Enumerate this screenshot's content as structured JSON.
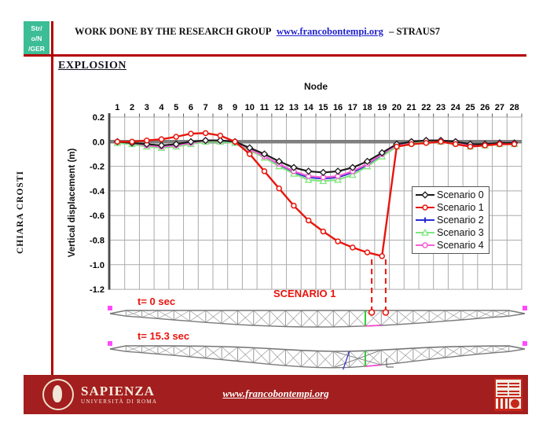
{
  "header": {
    "logo_lines": [
      "Str/",
      "o/N",
      "/GER"
    ],
    "title": "WORK DONE BY THE RESEARCH GROUP",
    "link": "www.francobontempi.org",
    "suffix": "– STRAUS7"
  },
  "sidebar": {
    "author": "CHIARA CROSTI"
  },
  "section_title": "EXPLOSION",
  "chart_data": {
    "type": "line",
    "title": "Node",
    "xlabel": "Node",
    "ylabel": "Vertical displacement (m)",
    "x": [
      1,
      2,
      3,
      4,
      5,
      6,
      7,
      8,
      9,
      10,
      11,
      12,
      13,
      14,
      15,
      16,
      17,
      18,
      19,
      20,
      21,
      22,
      23,
      24,
      25,
      26,
      27,
      28
    ],
    "ylim": [
      -1.2,
      0.2
    ],
    "ytick_labels": [
      "0.2",
      "0.0",
      "-0.2",
      "-0.4",
      "-0.6",
      "-0.8",
      "-1.0",
      "-1.2"
    ],
    "grid": true,
    "legend_position": "right-middle",
    "series": [
      {
        "name": "Scenario 0",
        "color": "#1A1A1A",
        "marker": "diamond",
        "values": [
          0.0,
          -0.01,
          -0.02,
          -0.03,
          -0.02,
          0.0,
          0.01,
          0.01,
          0.0,
          -0.05,
          -0.1,
          -0.16,
          -0.21,
          -0.24,
          -0.25,
          -0.24,
          -0.21,
          -0.16,
          -0.09,
          -0.02,
          0.0,
          0.01,
          0.01,
          0.0,
          -0.02,
          -0.02,
          -0.01,
          -0.01
        ]
      },
      {
        "name": "Scenario 1",
        "color": "#E8150D",
        "marker": "circle",
        "values": [
          0.0,
          0.0,
          0.01,
          0.02,
          0.04,
          0.065,
          0.07,
          0.05,
          0.0,
          -0.1,
          -0.24,
          -0.38,
          -0.52,
          -0.64,
          -0.73,
          -0.81,
          -0.86,
          -0.9,
          -0.93,
          -0.04,
          -0.02,
          -0.01,
          0.0,
          -0.02,
          -0.04,
          -0.03,
          -0.02,
          -0.02
        ]
      },
      {
        "name": "Scenario 2",
        "color": "#2B2BD5",
        "marker": "plus",
        "values": [
          0.0,
          -0.01,
          -0.03,
          -0.04,
          -0.03,
          -0.01,
          0.01,
          0.01,
          0.0,
          -0.06,
          -0.12,
          -0.19,
          -0.25,
          -0.29,
          -0.3,
          -0.29,
          -0.25,
          -0.19,
          -0.11,
          -0.03,
          0.0,
          0.01,
          0.01,
          0.0,
          -0.03,
          -0.02,
          -0.01,
          -0.01
        ]
      },
      {
        "name": "Scenario 3",
        "color": "#7FE57F",
        "marker": "triangle",
        "values": [
          -0.01,
          -0.02,
          -0.04,
          -0.05,
          -0.04,
          -0.02,
          0.0,
          0.0,
          -0.01,
          -0.07,
          -0.13,
          -0.2,
          -0.26,
          -0.31,
          -0.32,
          -0.31,
          -0.27,
          -0.2,
          -0.12,
          -0.04,
          -0.01,
          0.0,
          0.0,
          -0.01,
          -0.04,
          -0.03,
          -0.02,
          -0.02
        ]
      },
      {
        "name": "Scenario 4",
        "color": "#F75FD7",
        "marker": "circle",
        "values": [
          0.0,
          -0.01,
          -0.03,
          -0.04,
          -0.03,
          -0.01,
          0.01,
          0.01,
          0.0,
          -0.06,
          -0.12,
          -0.18,
          -0.24,
          -0.28,
          -0.29,
          -0.28,
          -0.24,
          -0.18,
          -0.1,
          -0.03,
          0.0,
          0.01,
          0.01,
          0.0,
          -0.03,
          -0.02,
          -0.01,
          -0.01
        ]
      }
    ],
    "annotation": {
      "label": "SCENARIO 1",
      "color": "#E8150D",
      "dashed_x_nodes": [
        18.3,
        19.25
      ]
    }
  },
  "diagrams": {
    "truss1_label": "t= 0 sec",
    "truss2_label": "t= 15.3 sec"
  },
  "footer": {
    "university": "SAPIENZA",
    "university_sub": "UNIVERSITÀ DI ROMA",
    "link": "www.francobontempi.org"
  },
  "colors": {
    "accent_red": "#B30000",
    "footer_bg": "#A31E1E",
    "logo_green": "#3DBD96",
    "link_blue": "#2222CC",
    "grid": "#ABABAB",
    "zero_line": "#7F7F7F"
  }
}
